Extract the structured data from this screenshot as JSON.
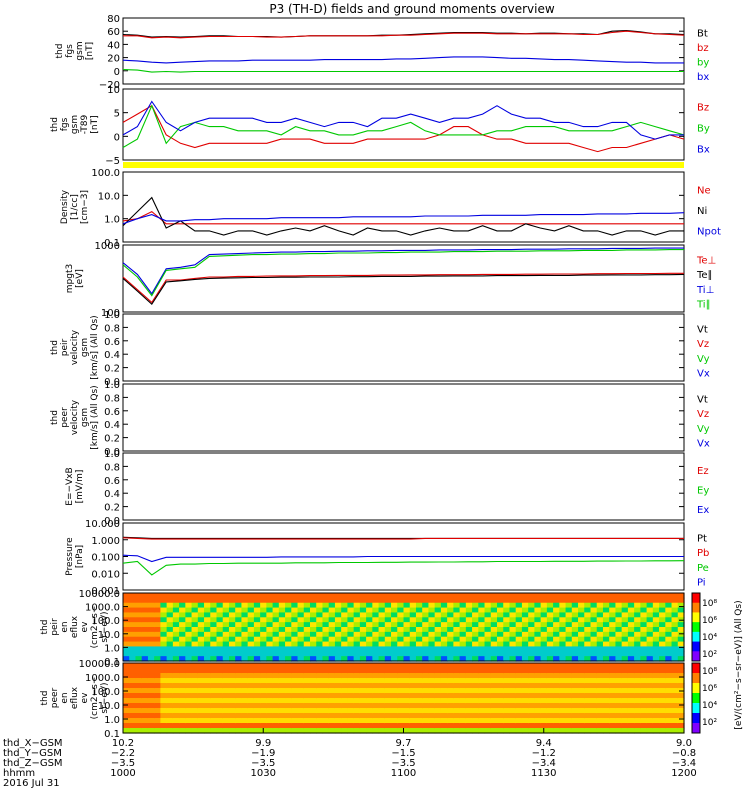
{
  "title": "P3 (TH-D) fields and ground moments overview",
  "colors": {
    "black": "#000000",
    "red": "#e00000",
    "green": "#00c800",
    "blue": "#0000e0",
    "yellow": "#ffff00"
  },
  "chart_data": [
    {
      "type": "line",
      "ylabel": [
        "thd",
        "fgs",
        "gsm",
        "[nT]"
      ],
      "ylim": [
        -20,
        80
      ],
      "yticks": [
        "80",
        "60",
        "40",
        "20",
        "0",
        "−20"
      ],
      "series": [
        {
          "name": "Bt",
          "color": "black",
          "values": [
            55,
            54,
            51,
            52,
            51,
            52,
            53,
            53,
            52,
            52,
            52,
            51,
            52,
            53,
            53,
            53,
            53,
            53,
            54,
            54,
            55,
            56,
            57,
            58,
            58,
            58,
            57,
            57,
            56,
            57,
            57,
            56,
            56,
            55,
            60,
            61,
            59,
            56,
            56,
            55
          ]
        },
        {
          "name": "bz",
          "color": "red",
          "values": [
            53,
            53,
            50,
            51,
            50,
            51,
            52,
            52,
            52,
            52,
            51,
            51,
            52,
            53,
            53,
            53,
            53,
            53,
            53,
            54,
            54,
            55,
            56,
            57,
            57,
            57,
            56,
            56,
            56,
            56,
            56,
            56,
            55,
            55,
            58,
            60,
            58,
            56,
            55,
            54
          ]
        },
        {
          "name": "by",
          "color": "green",
          "values": [
            2,
            1,
            -2,
            -1,
            -2,
            -1,
            -1,
            -1,
            -1,
            -1,
            -1,
            -1,
            -1,
            -1,
            -1,
            -1,
            -1,
            -1,
            -1,
            -1,
            -1,
            -1,
            -1,
            -1,
            -1,
            -1,
            -1,
            -1,
            -1,
            -1,
            -1,
            -1,
            -1,
            -1,
            -1,
            -1,
            -1,
            -1,
            -1,
            -1
          ]
        },
        {
          "name": "bx",
          "color": "blue",
          "values": [
            16,
            15,
            13,
            12,
            13,
            14,
            15,
            15,
            15,
            16,
            16,
            16,
            16,
            16,
            17,
            17,
            17,
            17,
            17,
            18,
            18,
            19,
            20,
            21,
            21,
            21,
            20,
            19,
            19,
            18,
            17,
            17,
            16,
            15,
            14,
            13,
            13,
            12,
            12,
            12
          ]
        }
      ]
    },
    {
      "type": "line",
      "ylabel": [
        "thd",
        "fgs",
        "gsm",
        "-T89",
        "[nT]"
      ],
      "ylim": [
        -7,
        10
      ],
      "yticks": [
        "10",
        "5",
        "0",
        "−5"
      ],
      "series": [
        {
          "name": "Bz",
          "color": "red",
          "values": [
            2,
            4,
            6,
            -1,
            -3,
            -4,
            -3,
            -3,
            -3,
            -3,
            -3,
            -2,
            -2,
            -2,
            -3,
            -3,
            -3,
            -2,
            -2,
            -2,
            -2,
            -2,
            -1,
            1,
            1,
            -1,
            -2,
            -2,
            -3,
            -3,
            -3,
            -3,
            -4,
            -5,
            -4,
            -4,
            -3,
            -2,
            -1,
            -2
          ]
        },
        {
          "name": "By",
          "color": "green",
          "values": [
            -4,
            -2,
            6,
            -3,
            1,
            2,
            1,
            1,
            0,
            0,
            0,
            -1,
            1,
            0,
            0,
            -1,
            -1,
            0,
            0,
            1,
            2,
            0,
            -1,
            -1,
            -1,
            -1,
            0,
            0,
            1,
            1,
            1,
            0,
            0,
            0,
            0,
            1,
            2,
            1,
            0,
            -1
          ]
        },
        {
          "name": "Bx",
          "color": "blue",
          "values": [
            -1,
            1,
            7,
            2,
            0,
            2,
            3,
            3,
            3,
            3,
            2,
            2,
            3,
            2,
            1,
            2,
            2,
            1,
            3,
            3,
            4,
            3,
            2,
            3,
            3,
            4,
            6,
            4,
            3,
            3,
            2,
            2,
            1,
            1,
            2,
            2,
            -1,
            -2,
            -1,
            -1
          ]
        }
      ]
    },
    {
      "type": "line",
      "ylabel": [
        "Density",
        "[1/cc]",
        "[cm−3]"
      ],
      "ylim": [
        0.1,
        100
      ],
      "yscale": "log",
      "yticks": [
        "100.0",
        "10.0",
        "1.0",
        "0.1"
      ],
      "series": [
        {
          "name": "Ne",
          "color": "red",
          "values": [
            0.8,
            1.0,
            2.0,
            0.6,
            0.6,
            0.6,
            0.6,
            0.6,
            0.6,
            0.6,
            0.6,
            0.6,
            0.6,
            0.6,
            0.6,
            0.6,
            0.6,
            0.6,
            0.6,
            0.6,
            0.6,
            0.6,
            0.6,
            0.6,
            0.6,
            0.6,
            0.6,
            0.6,
            0.6,
            0.6,
            0.6,
            0.6,
            0.6,
            0.6,
            0.6,
            0.6,
            0.6,
            0.6,
            0.6,
            0.6
          ]
        },
        {
          "name": "Ni",
          "color": "black",
          "values": [
            0.5,
            2.0,
            8.0,
            0.4,
            0.8,
            0.3,
            0.3,
            0.2,
            0.3,
            0.3,
            0.2,
            0.3,
            0.4,
            0.3,
            0.5,
            0.3,
            0.2,
            0.4,
            0.3,
            0.3,
            0.2,
            0.3,
            0.4,
            0.3,
            0.3,
            0.5,
            0.3,
            0.3,
            0.6,
            0.4,
            0.3,
            0.5,
            0.3,
            0.3,
            0.2,
            0.3,
            0.3,
            0.2,
            0.3,
            0.3
          ]
        },
        {
          "name": "Npot",
          "color": "blue",
          "values": [
            0.6,
            1.0,
            1.5,
            0.8,
            0.8,
            0.9,
            0.9,
            1.0,
            1.0,
            1.0,
            1.0,
            1.1,
            1.1,
            1.1,
            1.1,
            1.1,
            1.2,
            1.2,
            1.2,
            1.2,
            1.2,
            1.3,
            1.3,
            1.3,
            1.3,
            1.4,
            1.4,
            1.4,
            1.4,
            1.5,
            1.5,
            1.5,
            1.5,
            1.6,
            1.6,
            1.6,
            1.7,
            1.7,
            1.7,
            1.8
          ]
        }
      ]
    },
    {
      "type": "line",
      "ylabel": [
        "mpgt3",
        "[eV]"
      ],
      "ylim": [
        40,
        5000
      ],
      "yscale": "log",
      "yticks": [
        "1000",
        "100"
      ],
      "series": [
        {
          "name": "Te⊥",
          "color": "red",
          "values": [
            500,
            200,
            80,
            400,
            400,
            450,
            500,
            500,
            520,
            520,
            530,
            540,
            540,
            550,
            550,
            560,
            560,
            560,
            570,
            570,
            580,
            580,
            590,
            590,
            590,
            600,
            600,
            600,
            610,
            610,
            620,
            620,
            620,
            630,
            630,
            640,
            640,
            640,
            650,
            650
          ]
        },
        {
          "name": "Te∥",
          "color": "black",
          "values": [
            450,
            180,
            70,
            350,
            380,
            420,
            450,
            460,
            470,
            480,
            480,
            490,
            490,
            500,
            500,
            500,
            510,
            510,
            520,
            520,
            520,
            530,
            530,
            540,
            540,
            540,
            550,
            550,
            550,
            560,
            560,
            560,
            570,
            570,
            580,
            580,
            580,
            590,
            590,
            600
          ]
        },
        {
          "name": "Ti⊥",
          "color": "blue",
          "values": [
            1400,
            600,
            150,
            900,
            1000,
            1200,
            2500,
            2600,
            2700,
            2800,
            2900,
            3000,
            3000,
            3100,
            3100,
            3200,
            3200,
            3300,
            3300,
            3400,
            3400,
            3400,
            3500,
            3500,
            3500,
            3600,
            3600,
            3600,
            3700,
            3700,
            3700,
            3800,
            3800,
            3800,
            3900,
            3900,
            3900,
            4000,
            4000,
            4000
          ]
        },
        {
          "name": "Ti∥",
          "color": "green",
          "values": [
            1200,
            500,
            130,
            800,
            900,
            1000,
            2200,
            2300,
            2400,
            2500,
            2500,
            2600,
            2600,
            2700,
            2700,
            2800,
            2800,
            2800,
            2900,
            2900,
            3000,
            3000,
            3000,
            3100,
            3100,
            3100,
            3200,
            3200,
            3200,
            3300,
            3300,
            3300,
            3400,
            3400,
            3400,
            3500,
            3500,
            3500,
            3600,
            3600
          ]
        }
      ]
    },
    {
      "type": "line",
      "ylabel": [
        "thd",
        "peir",
        "velocity",
        "gsm",
        "[km/s] (All Qs)"
      ],
      "ylim": [
        0,
        1
      ],
      "yticks": [
        "1.0",
        "0.8",
        "0.6",
        "0.4",
        "0.2",
        "0.0"
      ],
      "series": [
        {
          "name": "Vt",
          "color": "black",
          "values": []
        },
        {
          "name": "Vz",
          "color": "red",
          "values": []
        },
        {
          "name": "Vy",
          "color": "green",
          "values": []
        },
        {
          "name": "Vx",
          "color": "blue",
          "values": []
        }
      ]
    },
    {
      "type": "line",
      "ylabel": [
        "thd",
        "peer",
        "velocity",
        "gsm",
        "[km/s] (All Qs)"
      ],
      "ylim": [
        0,
        1
      ],
      "yticks": [
        "1.0",
        "0.8",
        "0.6",
        "0.4",
        "0.2",
        "0.0"
      ],
      "series": [
        {
          "name": "Vt",
          "color": "black",
          "values": []
        },
        {
          "name": "Vz",
          "color": "red",
          "values": []
        },
        {
          "name": "Vy",
          "color": "green",
          "values": []
        },
        {
          "name": "Vx",
          "color": "blue",
          "values": []
        }
      ]
    },
    {
      "type": "line",
      "ylabel": [
        "E=−VxB",
        "[mV/m]"
      ],
      "ylim": [
        0,
        1
      ],
      "yticks": [
        "1.0",
        "0.8",
        "0.6",
        "0.4",
        "0.2",
        "0.0"
      ],
      "series": [
        {
          "name": "Ez",
          "color": "red",
          "values": []
        },
        {
          "name": "Ey",
          "color": "green",
          "values": []
        },
        {
          "name": "Ex",
          "color": "blue",
          "values": []
        }
      ]
    },
    {
      "type": "line",
      "ylabel": [
        "Pressure",
        "[nPa]"
      ],
      "ylim": [
        0.001,
        10
      ],
      "yscale": "log",
      "yticks": [
        "10.000",
        "1.000",
        "0.100",
        "0.010",
        "0.001"
      ],
      "series": [
        {
          "name": "Pt",
          "color": "black",
          "values": [
            1.4,
            1.3,
            1.2,
            1.2,
            1.2,
            1.2,
            1.2,
            1.2,
            1.2,
            1.2,
            1.2,
            1.2,
            1.2,
            1.2,
            1.2,
            1.2,
            1.2,
            1.2,
            1.2,
            1.2,
            1.2,
            1.2,
            1.2,
            1.2,
            1.2,
            1.2,
            1.2,
            1.2,
            1.2,
            1.2,
            1.2,
            1.2,
            1.2,
            1.2,
            1.2,
            1.2,
            1.2,
            1.2,
            1.2,
            1.2
          ]
        },
        {
          "name": "Pb",
          "color": "red",
          "values": [
            1.3,
            1.2,
            1.1,
            1.1,
            1.1,
            1.1,
            1.1,
            1.1,
            1.1,
            1.1,
            1.1,
            1.1,
            1.1,
            1.1,
            1.1,
            1.1,
            1.1,
            1.1,
            1.1,
            1.1,
            1.1,
            1.2,
            1.2,
            1.2,
            1.2,
            1.2,
            1.2,
            1.2,
            1.2,
            1.2,
            1.2,
            1.2,
            1.2,
            1.2,
            1.2,
            1.2,
            1.2,
            1.2,
            1.2,
            1.2
          ]
        },
        {
          "name": "Pe",
          "color": "green",
          "values": [
            0.04,
            0.05,
            0.008,
            0.03,
            0.035,
            0.035,
            0.038,
            0.038,
            0.04,
            0.04,
            0.04,
            0.04,
            0.042,
            0.042,
            0.042,
            0.044,
            0.044,
            0.044,
            0.045,
            0.045,
            0.046,
            0.046,
            0.047,
            0.047,
            0.048,
            0.048,
            0.05,
            0.05,
            0.05,
            0.05,
            0.052,
            0.052,
            0.052,
            0.053,
            0.053,
            0.054,
            0.054,
            0.055,
            0.055,
            0.056
          ]
        },
        {
          "name": "Pi",
          "color": "blue",
          "values": [
            0.12,
            0.11,
            0.05,
            0.09,
            0.09,
            0.09,
            0.09,
            0.09,
            0.09,
            0.09,
            0.09,
            0.095,
            0.095,
            0.095,
            0.095,
            0.095,
            0.095,
            0.1,
            0.1,
            0.1,
            0.1,
            0.1,
            0.1,
            0.1,
            0.1,
            0.1,
            0.1,
            0.1,
            0.1,
            0.1,
            0.1,
            0.1,
            0.1,
            0.1,
            0.1,
            0.1,
            0.1,
            0.1,
            0.1,
            0.1
          ]
        }
      ]
    },
    {
      "type": "heatmap",
      "ylabel": [
        "thd",
        "peir",
        "en",
        "eflux",
        "ev",
        "(cm2−s−",
        "sr−eV)"
      ],
      "ylim": [
        0.1,
        10000
      ],
      "yscale": "log",
      "yticks": [
        "10000.0",
        "1000.0",
        "100.0",
        "10.0",
        "1.0",
        "0.1"
      ]
    },
    {
      "type": "heatmap",
      "ylabel": [
        "thd",
        "peer",
        "en",
        "eflux",
        "ev",
        "(cm2−s−",
        "sr−eV)"
      ],
      "ylim": [
        0.1,
        10000
      ],
      "yscale": "log",
      "yticks": [
        "10000.0",
        "1000.0",
        "100.0",
        "10.0",
        "1.0",
        "0.1"
      ]
    }
  ],
  "colorbar": {
    "label": "[eV/(cm²−s−sr−eV)] (All Qs)",
    "ticks": [
      "10⁸",
      "10⁶",
      "10⁴",
      "10²",
      "10⁸",
      "10⁶",
      "10⁴",
      "10²"
    ]
  },
  "xaxis": {
    "row_labels": [
      "thd_X−GSM",
      "thd_Y−GSM",
      "thd_Z−GSM",
      "hhmm",
      "2016 Jul 31"
    ],
    "columns": [
      {
        "values": [
          "10.2",
          "−2.2",
          "−3.5",
          "1000"
        ]
      },
      {
        "values": [
          "9.9",
          "−1.9",
          "−3.5",
          "1030"
        ]
      },
      {
        "values": [
          "9.7",
          "−1.5",
          "−3.5",
          "1100"
        ]
      },
      {
        "values": [
          "9.4",
          "−1.2",
          "−3.4",
          "1130"
        ]
      },
      {
        "values": [
          "9.0",
          "−0.8",
          "−3.4",
          "1200"
        ]
      }
    ]
  }
}
